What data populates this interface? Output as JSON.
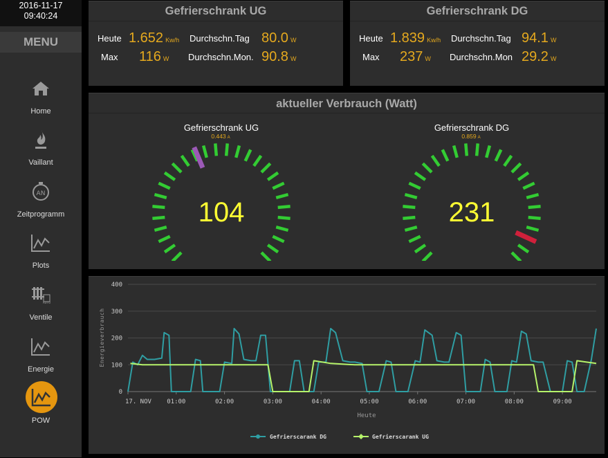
{
  "clock": {
    "date": "2016-11-17",
    "time": "09:40:24"
  },
  "menu": {
    "title": "MENU",
    "items": [
      {
        "label": "Home",
        "icon": "home-icon"
      },
      {
        "label": "Vaillant",
        "icon": "flame-icon"
      },
      {
        "label": "Zeitprogramm",
        "icon": "timer-icon"
      },
      {
        "label": "Plots",
        "icon": "plot-icon"
      },
      {
        "label": "Ventile",
        "icon": "valve-icon"
      },
      {
        "label": "Energie",
        "icon": "energy-icon"
      },
      {
        "label": "POW",
        "icon": "pow-icon"
      }
    ]
  },
  "colors": {
    "accent": "#e5a91e",
    "active": "#e5960f",
    "gauge_green": "#33cc33",
    "gauge_value": "#ffff33",
    "needle_ug": "#9b59b6",
    "needle_dg": "#d0203b",
    "series_dg": "#2f9ea3",
    "series_ug": "#b6f36a"
  },
  "ug": {
    "title": "Gefrierschrank UG",
    "heute_label": "Heute",
    "heute_value": "1.652",
    "heute_unit": "Kw/h",
    "tag_label": "Durchschn.Tag",
    "tag_value": "80.0",
    "tag_unit": "W",
    "max_label": "Max",
    "max_value": "116",
    "max_unit": "W",
    "mon_label": "Durchschn.Mon.",
    "mon_value": "90.8",
    "mon_unit": "W"
  },
  "dg": {
    "title": "Gefrierschrank DG",
    "heute_label": "Heute",
    "heute_value": "1.839",
    "heute_unit": "Kw/h",
    "tag_label": "Durchschn.Tag",
    "tag_value": "94.1",
    "tag_unit": "W",
    "max_label": "Max",
    "max_value": "237",
    "max_unit": "W",
    "mon_label": "Durchschn.Mon",
    "mon_value": "29.2",
    "mon_unit": "W"
  },
  "gauges": {
    "title": "aktueller Verbrauch (Watt)",
    "ug": {
      "label": "Gefrierschrank UG",
      "sub": "0.443",
      "sub_unit": "A",
      "value": "104",
      "reading": 104,
      "max": 250
    },
    "dg": {
      "label": "Gefrierschrank DG",
      "sub": "0.859",
      "sub_unit": "A",
      "value": "231",
      "reading": 231,
      "max": 250
    }
  },
  "chart_data": {
    "type": "line",
    "xlabel": "Heute",
    "ylabel": "Energieverbrauch",
    "ylim": [
      0,
      400
    ],
    "yticks": [
      0,
      100,
      200,
      300,
      400
    ],
    "xlim": [
      0,
      9.7
    ],
    "xticks": [
      {
        "v": 0,
        "label": "17. Nov"
      },
      {
        "v": 1,
        "label": "01:00"
      },
      {
        "v": 2,
        "label": "02:00"
      },
      {
        "v": 3,
        "label": "03:00"
      },
      {
        "v": 4,
        "label": "04:00"
      },
      {
        "v": 5,
        "label": "05:00"
      },
      {
        "v": 6,
        "label": "06:00"
      },
      {
        "v": 7,
        "label": "07:00"
      },
      {
        "v": 8,
        "label": "08:00"
      },
      {
        "v": 9,
        "label": "09:00"
      }
    ],
    "legend_position": "bottom",
    "series": [
      {
        "name": "Gefrierscarank DG",
        "marker": "circle",
        "points": [
          [
            0,
            0
          ],
          [
            0.1,
            110
          ],
          [
            0.2,
            100
          ],
          [
            0.3,
            135
          ],
          [
            0.4,
            120
          ],
          [
            0.55,
            120
          ],
          [
            0.7,
            125
          ],
          [
            0.75,
            220
          ],
          [
            0.85,
            210
          ],
          [
            0.9,
            0
          ],
          [
            1.15,
            0
          ],
          [
            1.3,
            0
          ],
          [
            1.4,
            120
          ],
          [
            1.5,
            115
          ],
          [
            1.55,
            0
          ],
          [
            1.8,
            0
          ],
          [
            1.9,
            0
          ],
          [
            2,
            110
          ],
          [
            2.15,
            105
          ],
          [
            2.2,
            235
          ],
          [
            2.3,
            215
          ],
          [
            2.4,
            120
          ],
          [
            2.55,
            115
          ],
          [
            2.65,
            115
          ],
          [
            2.75,
            210
          ],
          [
            2.85,
            210
          ],
          [
            2.95,
            0
          ],
          [
            3.2,
            0
          ],
          [
            3.35,
            0
          ],
          [
            3.45,
            115
          ],
          [
            3.55,
            115
          ],
          [
            3.65,
            0
          ],
          [
            3.8,
            0
          ],
          [
            3.85,
            0
          ],
          [
            3.95,
            110
          ],
          [
            4.1,
            110
          ],
          [
            4.2,
            235
          ],
          [
            4.3,
            220
          ],
          [
            4.45,
            115
          ],
          [
            4.6,
            110
          ],
          [
            4.7,
            110
          ],
          [
            4.85,
            105
          ],
          [
            4.95,
            0
          ],
          [
            5.1,
            0
          ],
          [
            5.2,
            0
          ],
          [
            5.35,
            115
          ],
          [
            5.45,
            110
          ],
          [
            5.55,
            0
          ],
          [
            5.7,
            0
          ],
          [
            5.8,
            0
          ],
          [
            5.95,
            115
          ],
          [
            6.05,
            110
          ],
          [
            6.15,
            230
          ],
          [
            6.3,
            210
          ],
          [
            6.4,
            115
          ],
          [
            6.55,
            110
          ],
          [
            6.65,
            110
          ],
          [
            6.8,
            220
          ],
          [
            6.9,
            210
          ],
          [
            7,
            0
          ],
          [
            7.2,
            0
          ],
          [
            7.3,
            0
          ],
          [
            7.4,
            120
          ],
          [
            7.5,
            110
          ],
          [
            7.6,
            0
          ],
          [
            7.75,
            0
          ],
          [
            7.85,
            0
          ],
          [
            7.95,
            115
          ],
          [
            8.05,
            110
          ],
          [
            8.15,
            225
          ],
          [
            8.25,
            215
          ],
          [
            8.35,
            115
          ],
          [
            8.5,
            110
          ],
          [
            8.6,
            110
          ],
          [
            8.75,
            0
          ],
          [
            8.9,
            0
          ],
          [
            9,
            0
          ],
          [
            9.1,
            115
          ],
          [
            9.2,
            110
          ],
          [
            9.3,
            0
          ],
          [
            9.45,
            0
          ],
          [
            9.6,
            120
          ],
          [
            9.7,
            235
          ]
        ]
      },
      {
        "name": "Gefrierscarank UG",
        "marker": "diamond",
        "points": [
          [
            0.05,
            105
          ],
          [
            0.3,
            100
          ],
          [
            0.6,
            100
          ],
          [
            1,
            100
          ],
          [
            1.5,
            100
          ],
          [
            2,
            100
          ],
          [
            2.5,
            100
          ],
          [
            2.9,
            100
          ],
          [
            3,
            0
          ],
          [
            3.5,
            0
          ],
          [
            3.75,
            0
          ],
          [
            3.85,
            115
          ],
          [
            4.2,
            105
          ],
          [
            4.7,
            100
          ],
          [
            5.2,
            100
          ],
          [
            5.7,
            100
          ],
          [
            6.2,
            100
          ],
          [
            6.7,
            100
          ],
          [
            7.2,
            100
          ],
          [
            7.7,
            100
          ],
          [
            8.2,
            100
          ],
          [
            8.4,
            100
          ],
          [
            8.5,
            0
          ],
          [
            9,
            0
          ],
          [
            9.2,
            0
          ],
          [
            9.3,
            115
          ],
          [
            9.5,
            110
          ],
          [
            9.7,
            105
          ]
        ]
      }
    ]
  }
}
